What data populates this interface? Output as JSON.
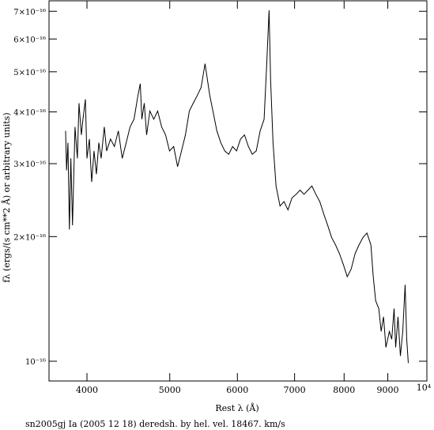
{
  "chart_data": {
    "type": "line",
    "title": "sn2005gj Ia (2005 12 18) deredsh. by hel. vel. 18467. km/s",
    "x_label": "Rest λ (Å)",
    "y_label": "fλ (ergs/(s cm**2 Å) or arbitrary units)",
    "x_scale": "log",
    "y_scale": "log",
    "grid": false,
    "xlim": [
      3611,
      10000
    ],
    "ylim": [
      8.96e-17,
      7.42e-16
    ],
    "xticks": [
      4000,
      5000,
      6000,
      7000,
      8000,
      9000,
      {
        "value": 10000,
        "label": "10⁴"
      }
    ],
    "yticks": [
      {
        "value": 1e-16,
        "label": "10⁻¹⁶"
      },
      {
        "value": 2e-16,
        "label": "2×10⁻¹⁶"
      },
      {
        "value": 3e-16,
        "label": "3×10⁻¹⁶"
      },
      {
        "value": 4e-16,
        "label": "4×10⁻¹⁶"
      },
      {
        "value": 5e-16,
        "label": "5×10⁻¹⁶"
      },
      {
        "value": 6e-16,
        "label": "6×10⁻¹⁶"
      },
      {
        "value": 7e-16,
        "label": "7×10⁻¹⁶"
      }
    ],
    "x": [
      3776,
      3786,
      3800,
      3815,
      3830,
      3847,
      3873,
      3898,
      3915,
      3940,
      3957,
      3983,
      4000,
      4026,
      4051,
      4077,
      4103,
      4130,
      4156,
      4191,
      4218,
      4262,
      4307,
      4353,
      4399,
      4446,
      4493,
      4541,
      4589,
      4618,
      4638,
      4668,
      4698,
      4739,
      4789,
      4840,
      4892,
      4944,
      4997,
      5053,
      5107,
      5161,
      5216,
      5271,
      5327,
      5384,
      5441,
      5499,
      5534,
      5570,
      5617,
      5677,
      5738,
      5799,
      5861,
      5923,
      5986,
      6051,
      6116,
      6181,
      6246,
      6313,
      6380,
      6448,
      6494,
      6535,
      6562,
      6605,
      6659,
      6731,
      6803,
      6877,
      6951,
      7030,
      7105,
      7181,
      7258,
      7335,
      7413,
      7492,
      7572,
      7653,
      7735,
      7817,
      7900,
      7985,
      8068,
      8154,
      8241,
      8329,
      8418,
      8508,
      8599,
      8654,
      8710,
      8784,
      8840,
      8897,
      8954,
      9038,
      9096,
      9154,
      9193,
      9251,
      9311,
      9370,
      9430,
      9471,
      9511
    ],
    "series": [
      {
        "color": "#000000",
        "values": [
          3.6e-16,
          2.89e-16,
          3.37e-16,
          2.08e-16,
          3.09e-16,
          2.13e-16,
          3.68e-16,
          3.09e-16,
          4.2e-16,
          3.52e-16,
          3.84e-16,
          4.29e-16,
          3.09e-16,
          3.44e-16,
          2.71e-16,
          3.22e-16,
          2.83e-16,
          3.37e-16,
          3.09e-16,
          3.68e-16,
          3.22e-16,
          3.44e-16,
          3.3e-16,
          3.6e-16,
          3.09e-16,
          3.37e-16,
          3.68e-16,
          3.84e-16,
          4.38e-16,
          4.68e-16,
          3.84e-16,
          4.2e-16,
          3.52e-16,
          4.02e-16,
          3.84e-16,
          4.02e-16,
          3.68e-16,
          3.52e-16,
          3.22e-16,
          3.3e-16,
          2.95e-16,
          3.22e-16,
          3.52e-16,
          4.02e-16,
          4.2e-16,
          4.38e-16,
          4.58e-16,
          5.23e-16,
          4.79e-16,
          4.38e-16,
          4.02e-16,
          3.6e-16,
          3.37e-16,
          3.22e-16,
          3.16e-16,
          3.3e-16,
          3.22e-16,
          3.44e-16,
          3.52e-16,
          3.3e-16,
          3.16e-16,
          3.22e-16,
          3.6e-16,
          3.84e-16,
          5.23e-16,
          7.04e-16,
          4.79e-16,
          3.37e-16,
          2.65e-16,
          2.37e-16,
          2.43e-16,
          2.32e-16,
          2.48e-16,
          2.53e-16,
          2.59e-16,
          2.53e-16,
          2.59e-16,
          2.65e-16,
          2.53e-16,
          2.43e-16,
          2.27e-16,
          2.13e-16,
          1.99e-16,
          1.91e-16,
          1.82e-16,
          1.71e-16,
          1.6e-16,
          1.67e-16,
          1.82e-16,
          1.91e-16,
          1.99e-16,
          2.04e-16,
          1.91e-16,
          1.6e-16,
          1.4e-16,
          1.34e-16,
          1.18e-16,
          1.28e-16,
          1.08e-16,
          1.18e-16,
          1.13e-16,
          1.34e-16,
          1.08e-16,
          1.28e-16,
          1.03e-16,
          1.18e-16,
          1.53e-16,
          1.13e-16,
          9.9e-17
        ]
      }
    ]
  }
}
